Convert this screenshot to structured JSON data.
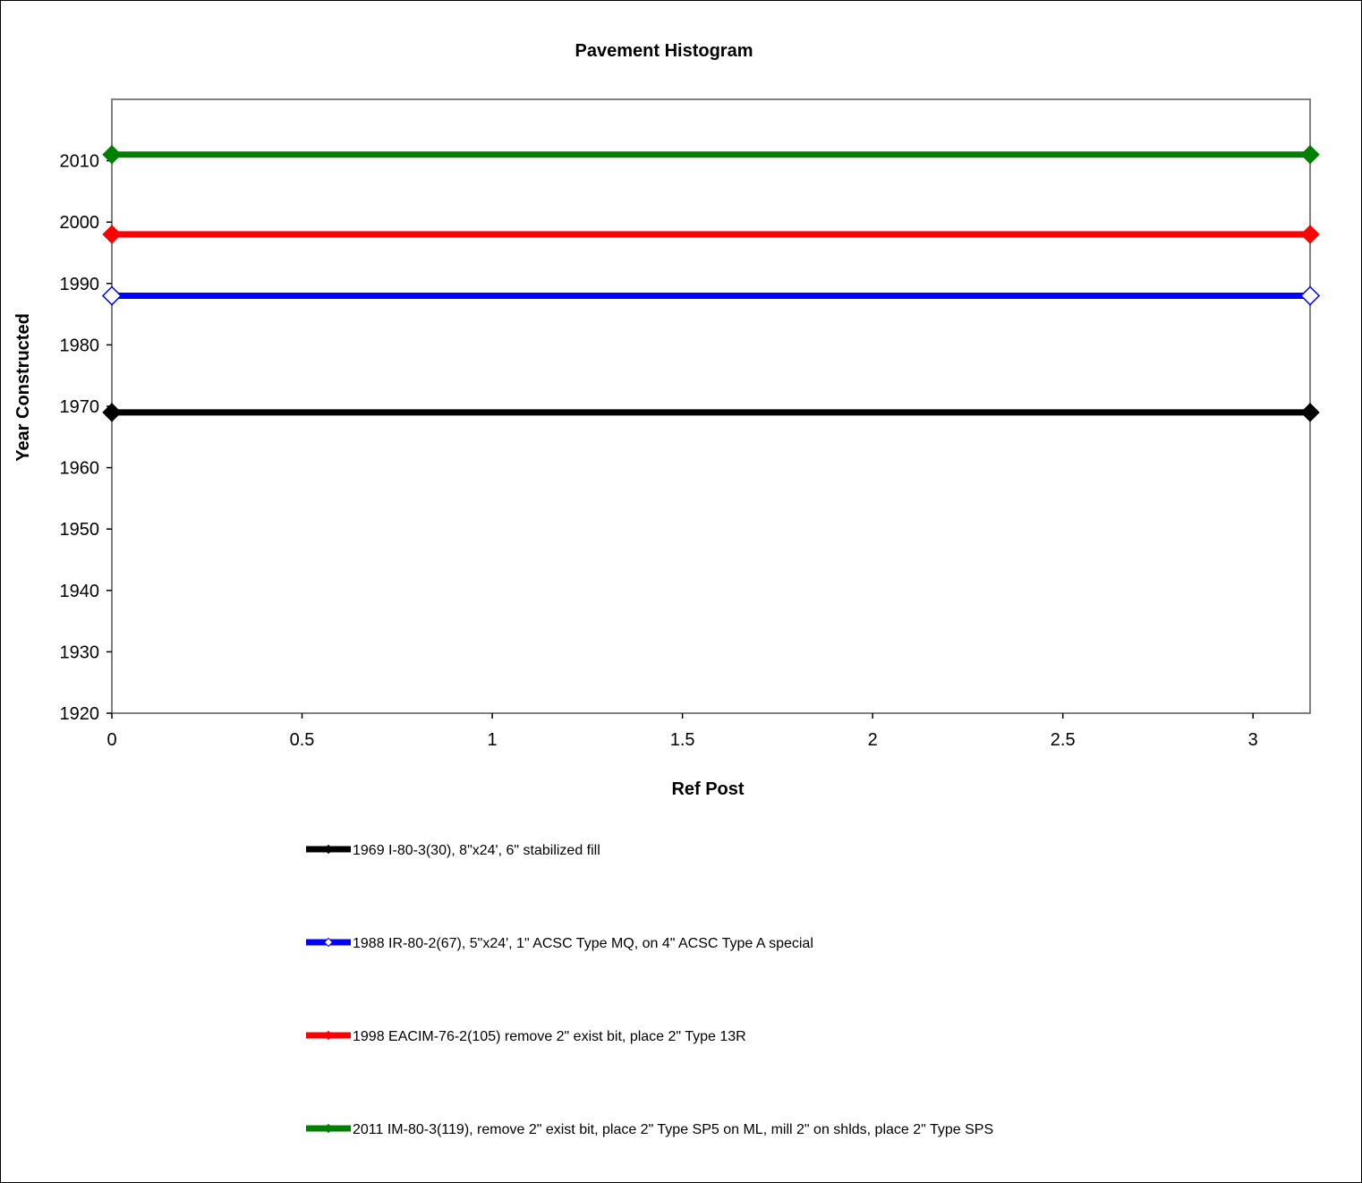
{
  "chart_data": {
    "type": "line",
    "title": "Pavement Histogram",
    "xlabel": "Ref Post",
    "ylabel": "Year Constructed",
    "xlim": [
      0,
      3.15
    ],
    "ylim": [
      1920,
      2020
    ],
    "x_ticks": [
      "0",
      "0.5",
      "1",
      "1.5",
      "2",
      "2.5",
      "3"
    ],
    "y_ticks": [
      "1920",
      "1930",
      "1940",
      "1950",
      "1960",
      "1970",
      "1980",
      "1990",
      "2000",
      "2010"
    ],
    "grid": false,
    "legend_position": "bottom",
    "series": [
      {
        "name": "1969 I-80-3(30), 8\"x24', 6\" stabilized fill",
        "color": "#000000",
        "marker": "diamond-filled",
        "x": [
          0,
          3.15
        ],
        "y": [
          1969,
          1969
        ]
      },
      {
        "name": "1988 IR-80-2(67), 5\"x24', 1\" ACSC Type MQ, on 4\" ACSC Type A special",
        "color": "#0000ff",
        "marker": "diamond-open",
        "x": [
          0,
          3.15
        ],
        "y": [
          1988,
          1988
        ]
      },
      {
        "name": "1998 EACIM-76-2(105) remove 2\" exist bit, place 2\" Type 13R",
        "color": "#ff0000",
        "marker": "diamond-filled",
        "x": [
          0,
          3.15
        ],
        "y": [
          1998,
          1998
        ]
      },
      {
        "name": "2011 IM-80-3(119), remove 2\" exist bit, place 2\" Type SP5 on ML, mill 2\" on shlds, place 2\" Type SPS",
        "color": "#008000",
        "marker": "diamond-filled",
        "x": [
          0,
          3.15
        ],
        "y": [
          2011,
          2011
        ]
      }
    ]
  }
}
